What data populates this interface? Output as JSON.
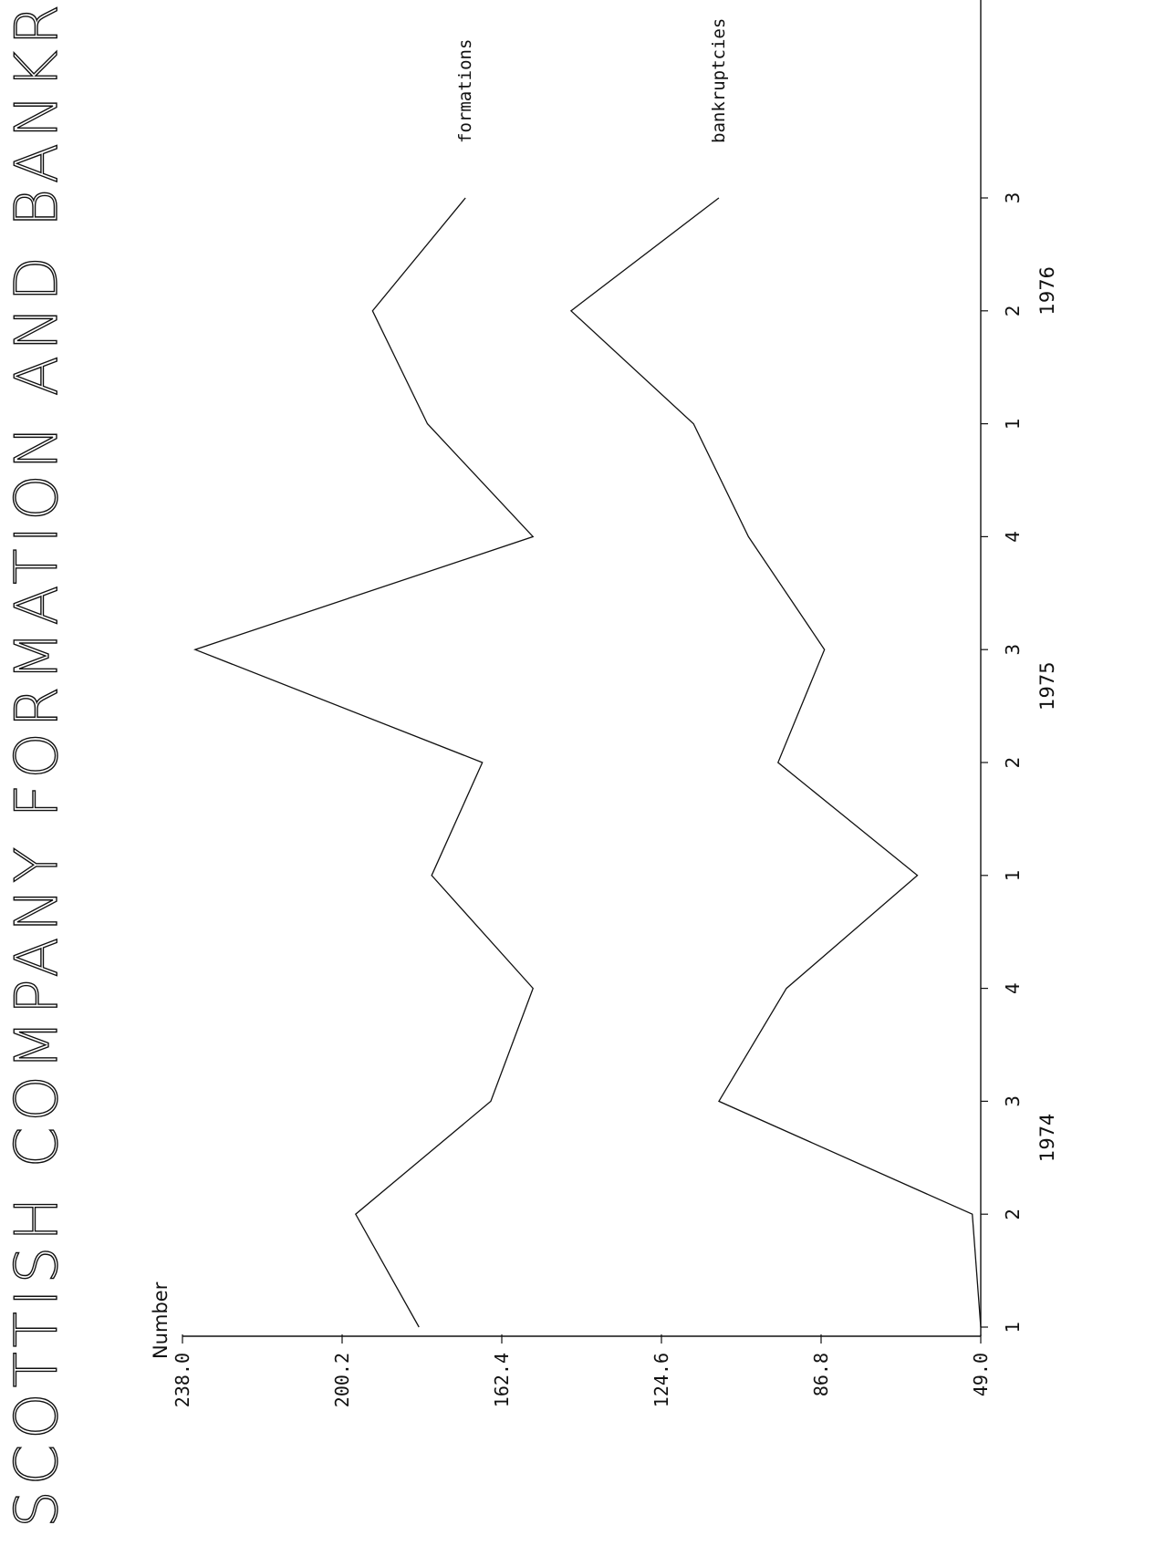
{
  "chart_data": {
    "type": "line",
    "title": "SCOTTISH COMPANY FORMATION AND BANKRUPTCY",
    "ylabel": "Number",
    "ylim": [
      49.0,
      238.0
    ],
    "yticks": [
      "49.0",
      "86.8",
      "124.6",
      "162.4",
      "200.2",
      "238.0"
    ],
    "categories": [
      "1",
      "2",
      "3",
      "4",
      "1",
      "2",
      "3",
      "4",
      "1",
      "2",
      "3"
    ],
    "year_groups": [
      {
        "label": "1974",
        "start": 0,
        "end": 3
      },
      {
        "label": "1975",
        "start": 4,
        "end": 7
      },
      {
        "label": "1976",
        "start": 8,
        "end": 10
      }
    ],
    "series": [
      {
        "name": "formations",
        "values": [
          182,
          197,
          165,
          155,
          179,
          167,
          235,
          155,
          180,
          193,
          171
        ]
      },
      {
        "name": "bankruptcies",
        "values": [
          49,
          51,
          111,
          95,
          64,
          97,
          86,
          104,
          117,
          146,
          111
        ]
      }
    ],
    "grid": false
  }
}
